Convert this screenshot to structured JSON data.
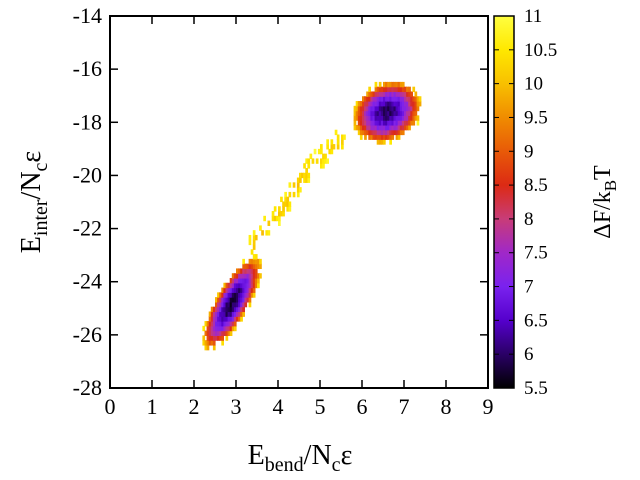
{
  "chart_data": {
    "type": "heatmap",
    "title": "",
    "xlabel": {
      "main": "E",
      "sub": "bend",
      "rest": "/N",
      "sub2": "c",
      "end": "ε"
    },
    "ylabel": {
      "main": "E",
      "sub": "inter",
      "rest": "/N",
      "sub2": "c",
      "end": "ε"
    },
    "colorbar_label": {
      "main": "ΔF/k",
      "sub": "B",
      "end": "T"
    },
    "xlim": [
      0,
      9
    ],
    "ylim": [
      -28,
      -14
    ],
    "zlim": [
      5.5,
      11
    ],
    "x_ticks": [
      "0",
      "1",
      "2",
      "3",
      "4",
      "5",
      "6",
      "7",
      "8",
      "9"
    ],
    "y_ticks": [
      "-28",
      "-26",
      "-24",
      "-22",
      "-20",
      "-18",
      "-16",
      "-14"
    ],
    "colorbar_ticks": [
      "5.5",
      "6",
      "6.5",
      "7",
      "7.5",
      "8",
      "8.5",
      "9",
      "9.5",
      "10",
      "10.5",
      "11"
    ],
    "colormap": [
      "#000000",
      "#2a0066",
      "#5500cc",
      "#7a22ee",
      "#a028c8",
      "#c83c78",
      "#dc2a14",
      "#e85a08",
      "#f08c00",
      "#f8c000",
      "#ffe800",
      "#ffff40"
    ],
    "basins": [
      {
        "x": 2.9,
        "y": -24.8,
        "free_energy_min": 5.8
      },
      {
        "x": 6.6,
        "y": -17.6,
        "free_energy_min": 6.0
      }
    ],
    "transition_path": [
      {
        "x": 3.4,
        "y": -22.6
      },
      {
        "x": 4.2,
        "y": -21.0
      },
      {
        "x": 4.8,
        "y": -19.6
      },
      {
        "x": 5.5,
        "y": -18.6
      }
    ]
  }
}
